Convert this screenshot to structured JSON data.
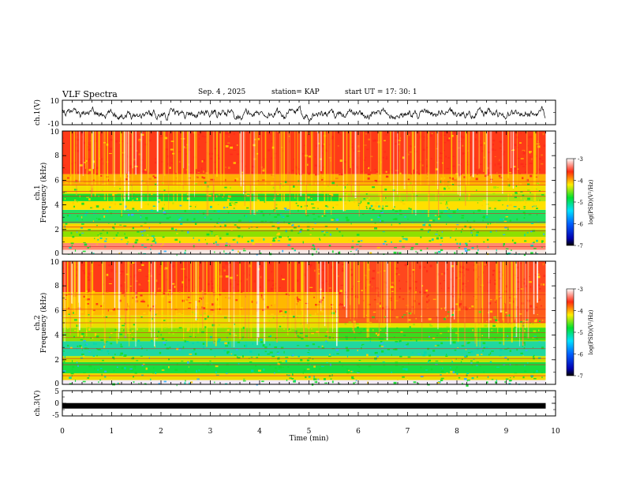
{
  "header": {
    "title": "VLF Spectra",
    "date": "Sep. 4 , 2025",
    "station": "station= KAP",
    "start": "start UT = 17: 30: 1"
  },
  "chart_data": [
    {
      "type": "line",
      "name": "ch1-waveform",
      "ylabel": "ch.1(V)",
      "ylim": [
        -10,
        10
      ],
      "yticks": [
        10,
        -10
      ],
      "xlim": [
        0,
        10
      ],
      "series": [
        {
          "name": "ch.1",
          "values_description": "noisy signal oscillating between about -8 and 5 V",
          "mean": -1,
          "span_min": 9.8
        }
      ]
    },
    {
      "type": "heatmap",
      "name": "ch1-spectrogram",
      "ylabel": "ch.1 Frequency (kHz)",
      "ylim": [
        0,
        10
      ],
      "yticks": [
        0,
        2,
        4,
        6,
        8,
        10
      ],
      "xlim": [
        0,
        10
      ],
      "data_end_min": 9.8,
      "colorbar": {
        "label": "log(PSD)(V²/Hz)",
        "range": [
          -7,
          -3
        ],
        "ticks": [
          -3,
          -4,
          -5,
          -6,
          -7
        ]
      }
    },
    {
      "type": "heatmap",
      "name": "ch2-spectrogram",
      "ylabel": "ch.2 Frequency (kHz)",
      "ylim": [
        0,
        10
      ],
      "yticks": [
        0,
        2,
        4,
        6,
        8,
        10
      ],
      "xlim": [
        0,
        10
      ],
      "data_end_min": 9.8,
      "colorbar": {
        "label": "log(PSD)(V²/Hz)",
        "range": [
          -7,
          -3
        ],
        "ticks": [
          -3,
          -4,
          -5,
          -6,
          -7
        ]
      }
    },
    {
      "type": "line",
      "name": "ch3-waveform",
      "ylabel": "ch.3(V)",
      "ylim": [
        -5,
        5
      ],
      "yticks": [
        5,
        0,
        -5
      ],
      "xlim": [
        0,
        10
      ],
      "series": [
        {
          "name": "ch.3",
          "level": -1,
          "span_min": 9.8
        }
      ]
    }
  ],
  "xaxis": {
    "label": "Time (min)",
    "ticks": [
      0,
      1,
      2,
      3,
      4,
      5,
      6,
      7,
      8,
      9,
      10
    ]
  },
  "colors": {
    "high": "#ff2a1a",
    "mid": "#ffd000",
    "low": "#12dd2a",
    "min": "#0000aa"
  }
}
